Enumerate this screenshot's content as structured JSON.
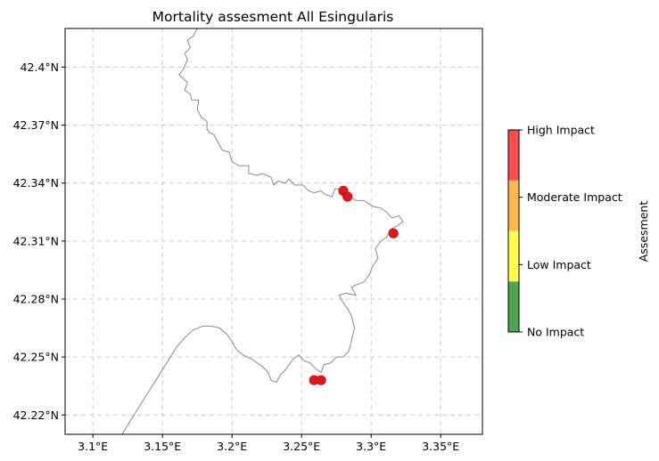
{
  "chart_data": {
    "type": "scatter",
    "title": "Mortality assesment All Esingularis",
    "xlim": [
      3.08,
      3.38
    ],
    "ylim": [
      42.21,
      42.42
    ],
    "xticks": [
      3.1,
      3.15,
      3.2,
      3.25,
      3.3,
      3.35
    ],
    "xtick_labels": [
      "3.1°E",
      "3.15°E",
      "3.2°E",
      "3.25°E",
      "3.3°E",
      "3.35°E"
    ],
    "yticks": [
      42.22,
      42.25,
      42.28,
      42.31,
      42.34,
      42.37,
      42.4
    ],
    "ytick_labels": [
      "42.22°N",
      "42.25°N",
      "42.28°N",
      "42.31°N",
      "42.34°N",
      "42.37°N",
      "42.4°N"
    ],
    "grid": true,
    "points": [
      {
        "lon": 3.28,
        "lat": 42.336,
        "level": "High Impact"
      },
      {
        "lon": 3.283,
        "lat": 42.333,
        "level": "High Impact"
      },
      {
        "lon": 3.316,
        "lat": 42.314,
        "level": "High Impact"
      },
      {
        "lon": 3.259,
        "lat": 42.238,
        "level": "High Impact"
      },
      {
        "lon": 3.264,
        "lat": 42.238,
        "level": "High Impact"
      }
    ],
    "colorbar": {
      "label": "Assesment",
      "levels": [
        "No Impact",
        "Low Impact",
        "Moderate Impact",
        "High Impact"
      ],
      "colors": [
        "#4ca64c",
        "#ffff4c",
        "#ffb84c",
        "#ff4c4c"
      ]
    },
    "coastline": [
      [
        3.175,
        42.42
      ],
      [
        3.172,
        42.416
      ],
      [
        3.168,
        42.414
      ],
      [
        3.17,
        42.41
      ],
      [
        3.166,
        42.407
      ],
      [
        3.168,
        42.404
      ],
      [
        3.165,
        42.399
      ],
      [
        3.162,
        42.396
      ],
      [
        3.168,
        42.392
      ],
      [
        3.166,
        42.388
      ],
      [
        3.17,
        42.386
      ],
      [
        3.171,
        42.383
      ],
      [
        3.176,
        42.383
      ],
      [
        3.175,
        42.378
      ],
      [
        3.178,
        42.374
      ],
      [
        3.182,
        42.372
      ],
      [
        3.182,
        42.368
      ],
      [
        3.184,
        42.366
      ],
      [
        3.187,
        42.365
      ],
      [
        3.19,
        42.361
      ],
      [
        3.193,
        42.357
      ],
      [
        3.198,
        42.356
      ],
      [
        3.2,
        42.351
      ],
      [
        3.205,
        42.349
      ],
      [
        3.212,
        42.349
      ],
      [
        3.212,
        42.345
      ],
      [
        3.218,
        42.344
      ],
      [
        3.222,
        42.345
      ],
      [
        3.228,
        42.343
      ],
      [
        3.23,
        42.339
      ],
      [
        3.233,
        42.341
      ],
      [
        3.238,
        42.34
      ],
      [
        3.241,
        42.342
      ],
      [
        3.245,
        42.339
      ],
      [
        3.251,
        42.339
      ],
      [
        3.255,
        42.336
      ],
      [
        3.259,
        42.335
      ],
      [
        3.264,
        42.336
      ],
      [
        3.267,
        42.334
      ],
      [
        3.272,
        42.333
      ],
      [
        3.274,
        42.337
      ],
      [
        3.279,
        42.337
      ],
      [
        3.283,
        42.334
      ],
      [
        3.289,
        42.331
      ],
      [
        3.295,
        42.331
      ],
      [
        3.301,
        42.328
      ],
      [
        3.307,
        42.327
      ],
      [
        3.311,
        42.325
      ],
      [
        3.315,
        42.322
      ],
      [
        3.32,
        42.323
      ],
      [
        3.323,
        42.32
      ],
      [
        3.319,
        42.318
      ],
      [
        3.314,
        42.316
      ],
      [
        3.311,
        42.312
      ],
      [
        3.307,
        42.31
      ],
      [
        3.303,
        42.306
      ],
      [
        3.305,
        42.301
      ],
      [
        3.301,
        42.297
      ],
      [
        3.299,
        42.293
      ],
      [
        3.295,
        42.289
      ],
      [
        3.292,
        42.288
      ],
      [
        3.288,
        42.287
      ],
      [
        3.286,
        42.286
      ],
      [
        3.289,
        42.282
      ],
      [
        3.282,
        42.283
      ],
      [
        3.277,
        42.282
      ],
      [
        3.28,
        42.278
      ],
      [
        3.283,
        42.275
      ],
      [
        3.286,
        42.271
      ],
      [
        3.288,
        42.265
      ],
      [
        3.286,
        42.259
      ],
      [
        3.284,
        42.253
      ],
      [
        3.28,
        42.25
      ],
      [
        3.275,
        42.25
      ],
      [
        3.271,
        42.247
      ],
      [
        3.266,
        42.246
      ],
      [
        3.264,
        42.242
      ],
      [
        3.26,
        42.244
      ],
      [
        3.256,
        42.247
      ],
      [
        3.252,
        42.248
      ],
      [
        3.248,
        42.251
      ],
      [
        3.244,
        42.249
      ],
      [
        3.241,
        42.246
      ],
      [
        3.238,
        42.243
      ],
      [
        3.235,
        42.241
      ],
      [
        3.232,
        42.237
      ],
      [
        3.228,
        42.238
      ],
      [
        3.226,
        42.242
      ],
      [
        3.222,
        42.245
      ],
      [
        3.218,
        42.247
      ],
      [
        3.214,
        42.249
      ],
      [
        3.208,
        42.251
      ],
      [
        3.203,
        42.254
      ],
      [
        3.2,
        42.258
      ],
      [
        3.196,
        42.262
      ],
      [
        3.191,
        42.265
      ],
      [
        3.185,
        42.266
      ],
      [
        3.179,
        42.266
      ],
      [
        3.172,
        42.264
      ],
      [
        3.166,
        42.26
      ],
      [
        3.16,
        42.255
      ],
      [
        3.154,
        42.248
      ],
      [
        3.147,
        42.24
      ],
      [
        3.14,
        42.232
      ],
      [
        3.133,
        42.224
      ],
      [
        3.126,
        42.216
      ],
      [
        3.121,
        42.21
      ]
    ]
  }
}
